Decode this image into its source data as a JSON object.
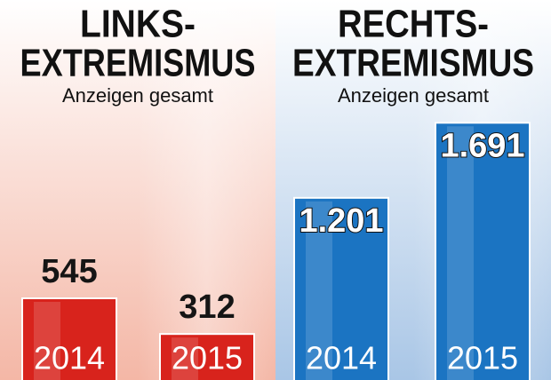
{
  "chart_data": [
    {
      "type": "bar",
      "title": [
        "LINKS-",
        "EXTREMISMUS"
      ],
      "subtitle": "Anzeigen gesamt",
      "categories": [
        "2014",
        "2015"
      ],
      "values": [
        545,
        312
      ],
      "color": "#d8231c",
      "label_position": "above"
    },
    {
      "type": "bar",
      "title": [
        "RECHTS-",
        "EXTREMISMUS"
      ],
      "subtitle": "Anzeigen gesamt",
      "categories": [
        "2014",
        "2015"
      ],
      "values": [
        1201,
        1691
      ],
      "value_labels": [
        "1.201",
        "1.691"
      ],
      "color": "#1b74c2",
      "label_position": "inside"
    }
  ]
}
